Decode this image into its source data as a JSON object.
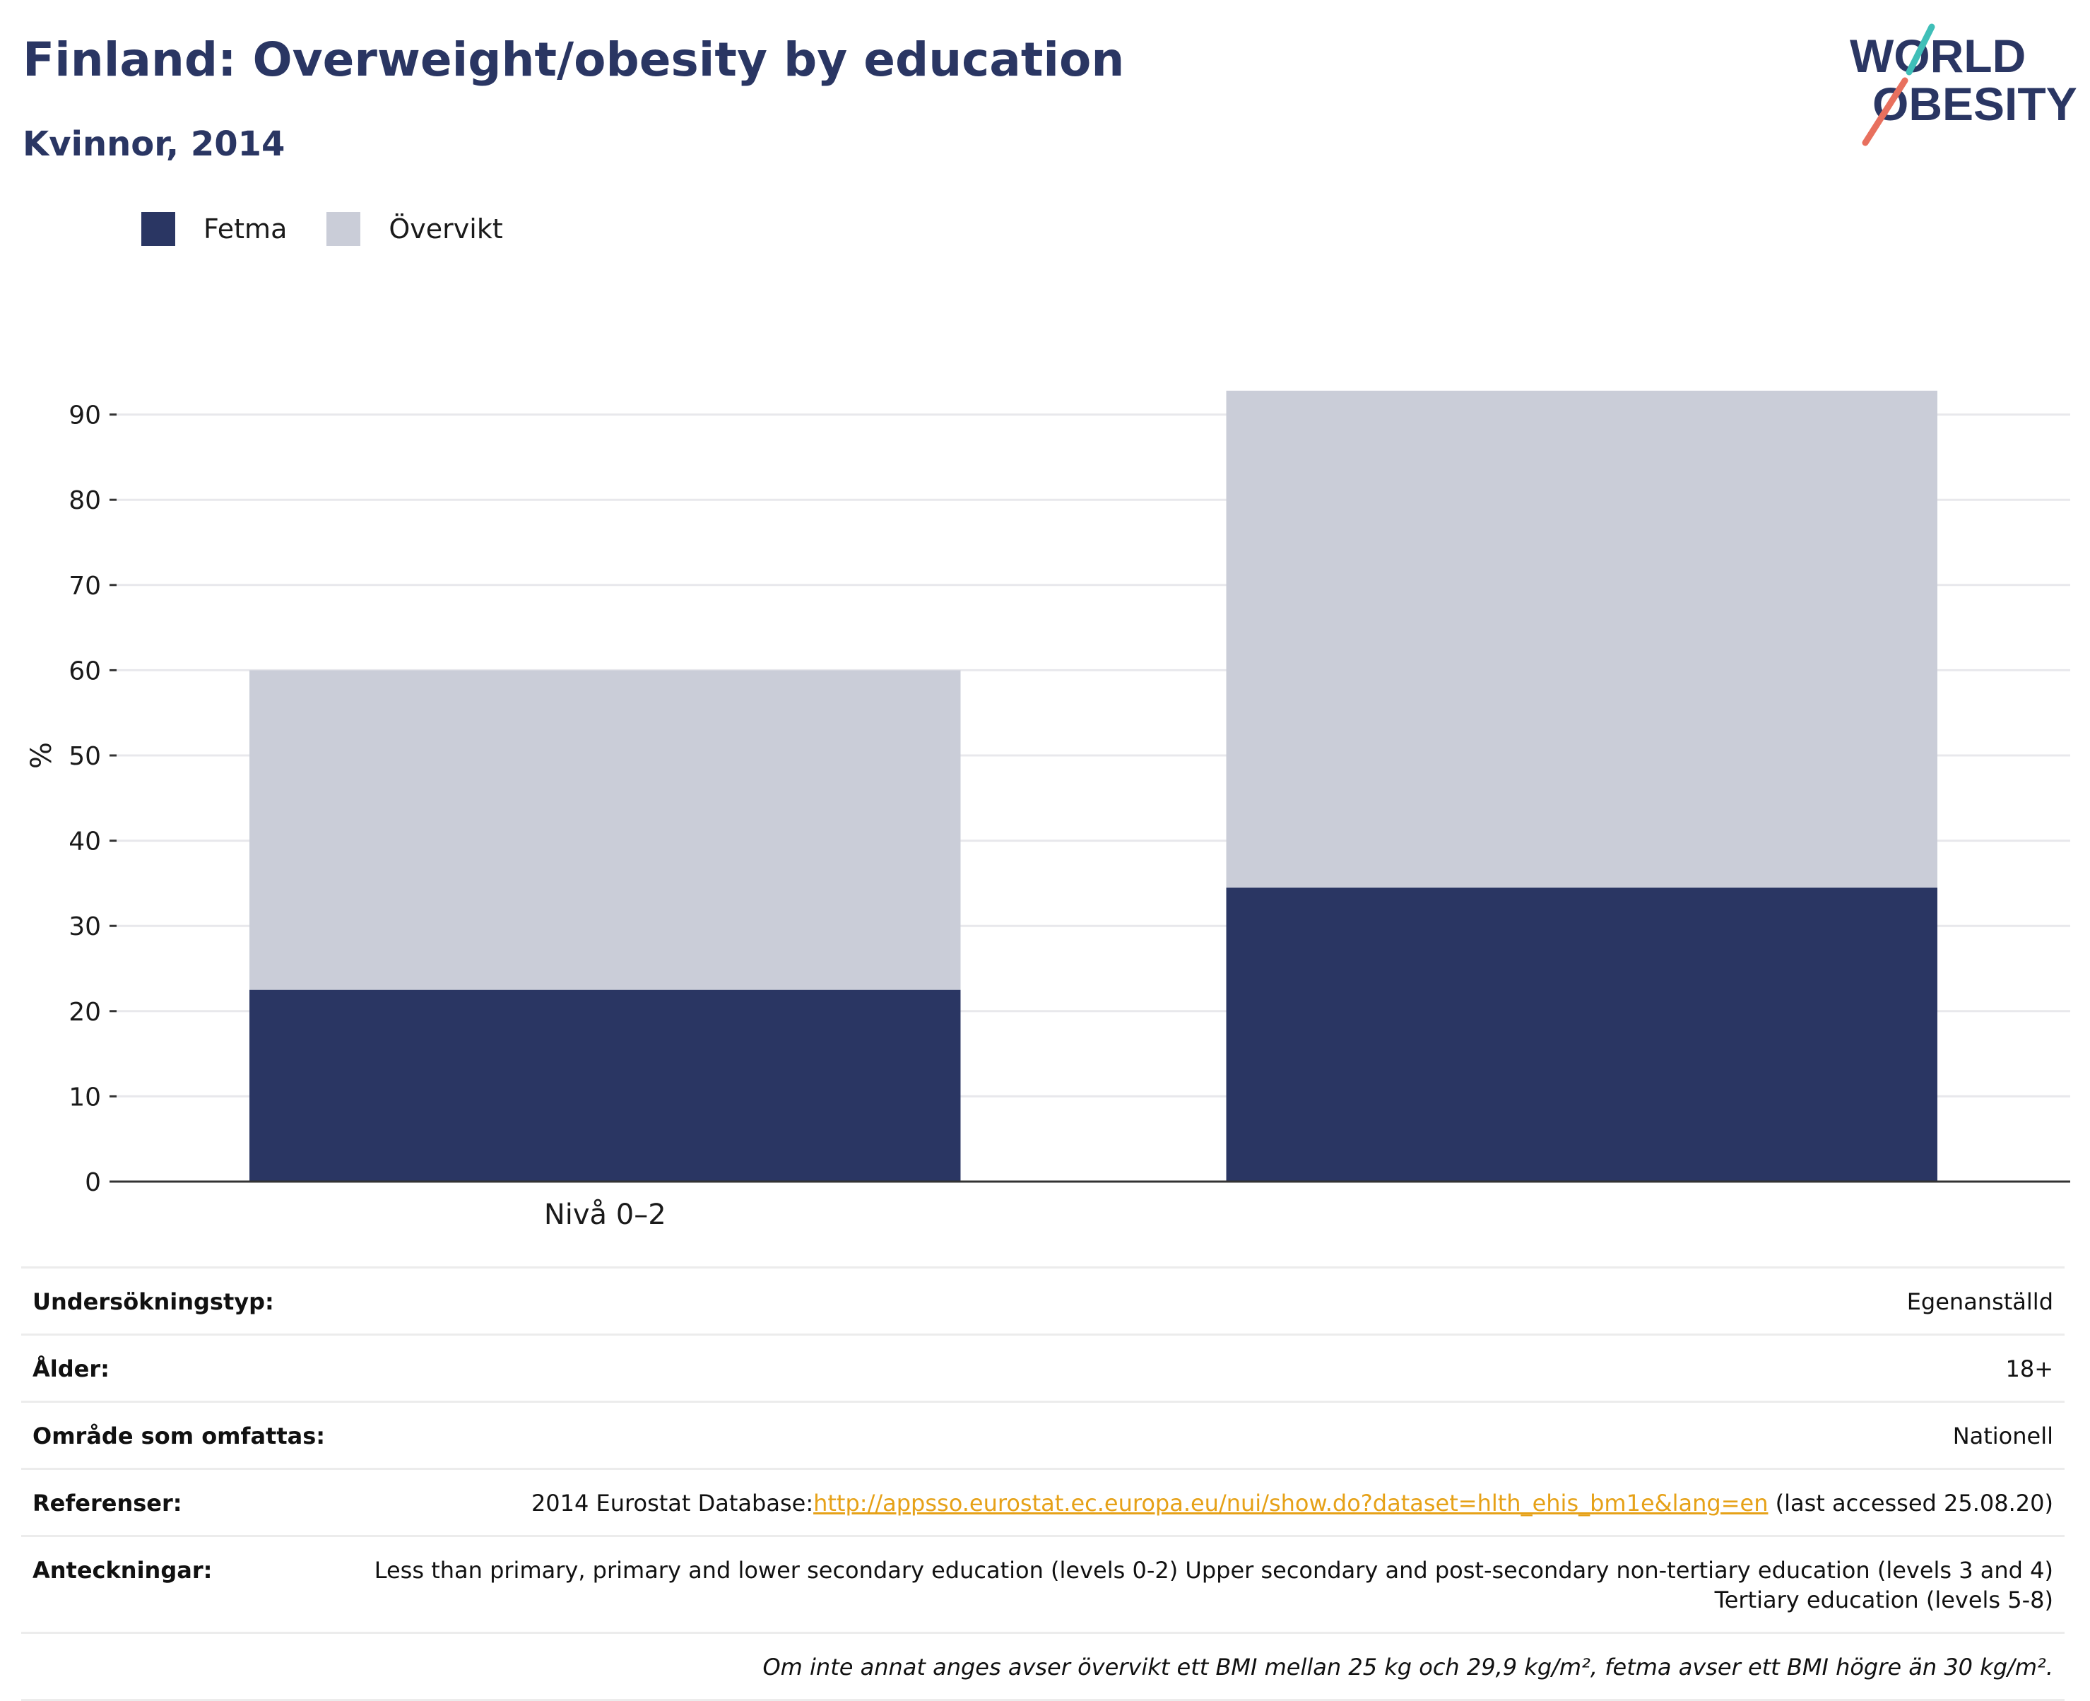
{
  "header": {
    "title": "Finland: Overweight/obesity by education",
    "subtitle": "Kvinnor, 2014"
  },
  "logo": {
    "line1": "WORLD",
    "line2": "OBESITY"
  },
  "chart_data": {
    "type": "bar",
    "stacked": true,
    "categories": [
      "Nivå 0–2",
      ""
    ],
    "series": [
      {
        "name": "Fetma",
        "color": "#2a3663",
        "values": [
          22.5,
          34.5
        ]
      },
      {
        "name": "Övervikt",
        "color": "#cacdd8",
        "values": [
          37.5,
          58.3
        ]
      }
    ],
    "ylabel": "%",
    "xlabel": "",
    "ylim": [
      0,
      96
    ],
    "yticks": [
      0,
      10,
      20,
      30,
      40,
      50,
      60,
      70,
      80,
      90
    ],
    "grid": true,
    "legend": "top-left"
  },
  "info": {
    "survey_type": {
      "label": "Undersökningstyp:",
      "value": "Egenanställd"
    },
    "age": {
      "label": "Ålder:",
      "value": "18+"
    },
    "area": {
      "label": "Område som omfattas:",
      "value": "Nationell"
    },
    "references": {
      "label": "Referenser:",
      "prefix": "2014 Eurostat Database:",
      "link": "http://appsso.eurostat.ec.europa.eu/nui/show.do?dataset=hlth_ehis_bm1e&lang=en",
      "suffix": " (last accessed 25.08.20)"
    },
    "notes": {
      "label": "Anteckningar:",
      "value": "Less than primary, primary and lower secondary education (levels 0-2) Upper secondary and post-secondary non-tertiary education (levels 3 and 4) Tertiary education (levels 5-8)"
    },
    "definition": "Om inte annat anges avser övervikt ett BMI mellan 25 kg och 29,9 kg/m², fetma avser ett BMI högre än 30 kg/m²."
  }
}
